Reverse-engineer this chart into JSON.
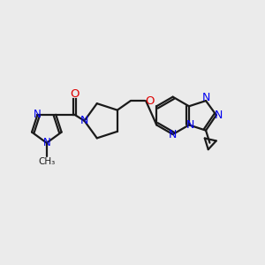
{
  "bg_color": "#ebebeb",
  "bond_color": "#1a1a1a",
  "nitrogen_color": "#0000ee",
  "oxygen_color": "#dd0000",
  "carbon_color": "#1a1a1a",
  "bond_width": 1.6,
  "figsize": [
    3.0,
    3.0
  ],
  "dpi": 100,
  "xlim": [
    0,
    10
  ],
  "ylim": [
    0,
    10
  ]
}
